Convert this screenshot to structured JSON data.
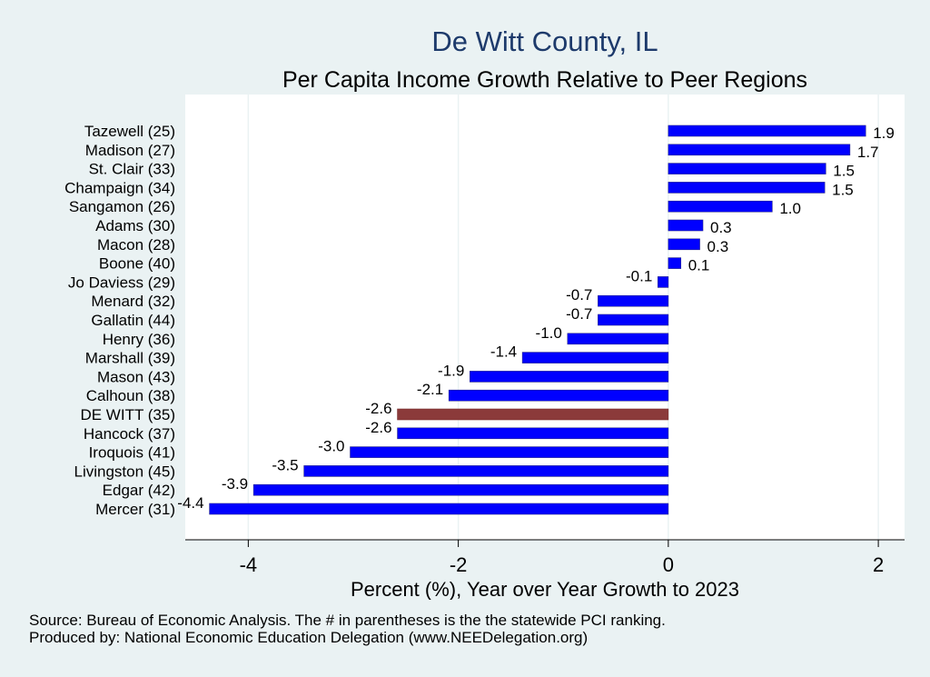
{
  "title": "De Witt County, IL",
  "subtitle": "Per Capita Income Growth Relative to Peer Regions",
  "source_line1": "Source: Bureau of Economic Analysis. The # in parentheses is the the statewide PCI ranking.",
  "source_line2": "Produced by: National Economic Education Delegation (www.NEEDelegation.org)",
  "colors": {
    "peer_bar": "#0000ff",
    "highlight_bar": "#8b3a3a",
    "plot_bg": "#ffffff",
    "page_bg": "#eaf2f3",
    "grid": "#eaf2f3",
    "title": "#1d3a6b"
  },
  "chart_data": {
    "type": "bar",
    "orientation": "horizontal",
    "xlabel": "Percent (%), Year over Year Growth to 2023",
    "ylabel": "",
    "xlim": [
      -4.6,
      2.25
    ],
    "xticks": [
      -4,
      -2,
      0,
      2
    ],
    "grid": true,
    "highlight": "DE WITT (35)",
    "categories": [
      "Tazewell (25)",
      "Madison (27)",
      "St. Clair (33)",
      "Champaign (34)",
      "Sangamon (26)",
      "Adams (30)",
      "Macon (28)",
      "Boone (40)",
      "Jo Daviess (29)",
      "Menard (32)",
      "Gallatin (44)",
      "Henry (36)",
      "Marshall (39)",
      "Mason (43)",
      "Calhoun (38)",
      "DE WITT (35)",
      "Hancock (37)",
      "Iroquois (41)",
      "Livingston (45)",
      "Edgar (42)",
      "Mercer (31)"
    ],
    "values": [
      1.88,
      1.73,
      1.5,
      1.49,
      0.99,
      0.33,
      0.3,
      0.12,
      -0.1,
      -0.67,
      -0.67,
      -0.96,
      -1.39,
      -1.89,
      -2.09,
      -2.58,
      -2.58,
      -3.03,
      -3.47,
      -3.95,
      -4.37
    ],
    "labels": [
      "1.9",
      "1.7",
      "1.5",
      "1.5",
      "1.0",
      "0.3",
      "0.3",
      "0.1",
      "-0.1",
      "-0.7",
      "-0.7",
      "-1.0",
      "-1.4",
      "-1.9",
      "-2.1",
      "-2.6",
      "-2.6",
      "-3.0",
      "-3.5",
      "-3.9",
      "-4.4"
    ]
  }
}
